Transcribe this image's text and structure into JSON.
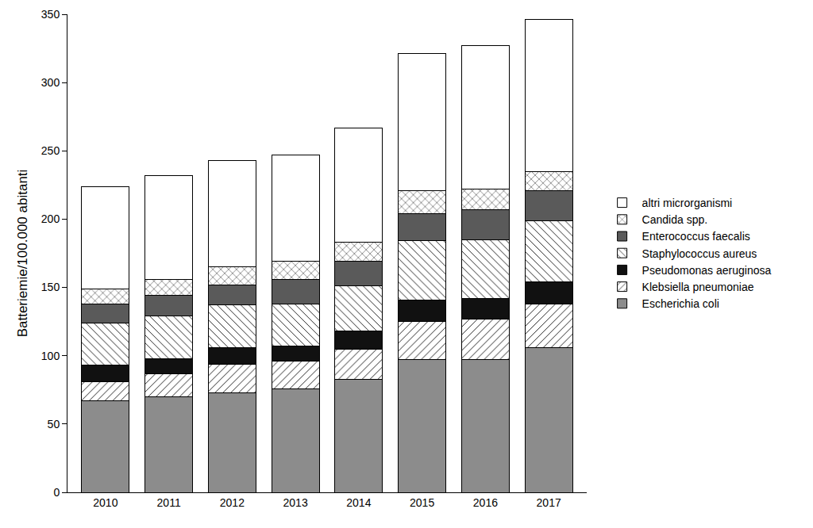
{
  "chart_data": {
    "type": "bar",
    "stacked": true,
    "y_label": "Batteriemie/100.000 abitanti",
    "categories": [
      "2010",
      "2011",
      "2012",
      "2013",
      "2014",
      "2015",
      "2016",
      "2017"
    ],
    "ylim": [
      0,
      350
    ],
    "yticks": [
      0,
      50,
      100,
      150,
      200,
      250,
      300,
      350
    ],
    "grid": false,
    "legend": "right",
    "series": [
      {
        "name": "Escherichia coli",
        "color": "#8c8c8c",
        "values": [
          67,
          70,
          73,
          76,
          83,
          97,
          97,
          106
        ]
      },
      {
        "name": "Klebsiella pneumoniae",
        "color": "#ffffff",
        "marker": "diagonal",
        "values": [
          14,
          17,
          21,
          20,
          22,
          28,
          30,
          32
        ]
      },
      {
        "name": "Pseudomonas aeruginosa",
        "color": "#111111",
        "values": [
          12,
          11,
          12,
          11,
          13,
          16,
          15,
          16
        ]
      },
      {
        "name": "Staphylococcus aureus",
        "color": "#ffffff",
        "marker": "backdiagonal",
        "values": [
          31,
          31,
          31,
          31,
          33,
          43,
          43,
          45
        ]
      },
      {
        "name": "Enterococcus faecalis",
        "color": "#5a5a5a",
        "values": [
          14,
          15,
          15,
          18,
          18,
          20,
          22,
          22
        ]
      },
      {
        "name": "Candida spp.",
        "color": "#ffffff",
        "marker": "crosshatch",
        "values": [
          11,
          12,
          13,
          13,
          14,
          17,
          15,
          14
        ]
      },
      {
        "name": "altri microrganismi",
        "color": "#ffffff",
        "values": [
          75,
          76,
          78,
          78,
          84,
          100,
          105,
          111
        ]
      }
    ]
  }
}
